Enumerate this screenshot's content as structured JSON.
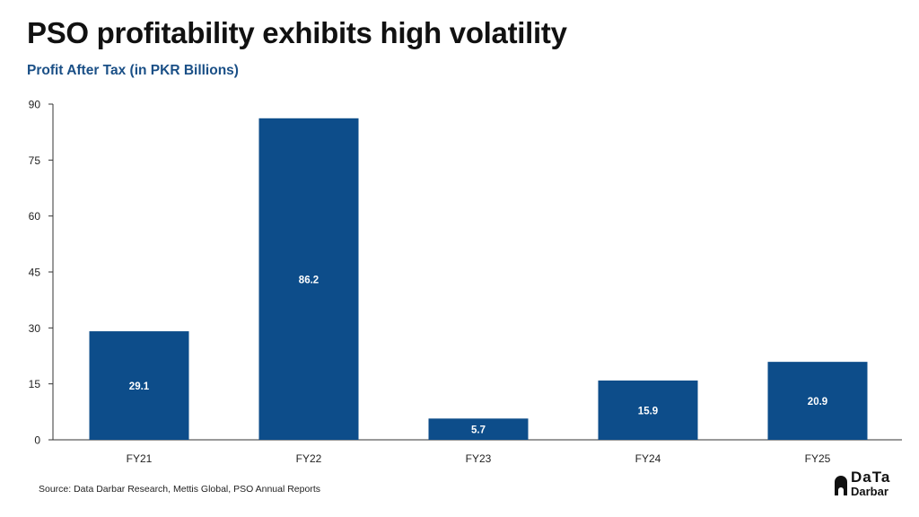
{
  "header": {
    "title": "PSO profitability exhibits high volatility",
    "subtitle": "Profit After Tax (in PKR Billions)"
  },
  "footer": {
    "source": "Source: Data Darbar Research, Mettis Global, PSO Annual Reports"
  },
  "logo": {
    "line1": "DaTa",
    "line2": "Darbar",
    "icon": "mosque-dome-icon"
  },
  "colors": {
    "bar": "#0d4d8a",
    "subtitle": "#1a4f86",
    "axis": "#333333",
    "label": "#ffffff"
  },
  "chart_data": {
    "type": "bar",
    "title": "Profit After Tax (in PKR Billions)",
    "categories": [
      "FY21",
      "FY22",
      "FY23",
      "FY24",
      "FY25"
    ],
    "values": [
      29.1,
      86.2,
      5.7,
      15.9,
      20.9
    ],
    "value_labels": [
      "29.1",
      "86.2",
      "5.7",
      "15.9",
      "20.9"
    ],
    "ylim": [
      0,
      90
    ],
    "yticks": [
      0,
      15,
      30,
      45,
      60,
      75,
      90
    ],
    "xlabel": "",
    "ylabel": "",
    "grid": false,
    "legend": "none"
  }
}
